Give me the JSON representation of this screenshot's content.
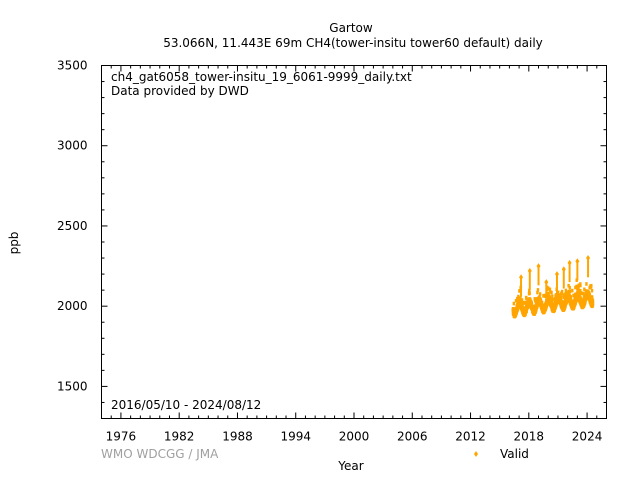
{
  "chart_data": {
    "type": "scatter",
    "title": "Gartow",
    "subtitle": "53.066N, 11.443E 69m    CH4(tower-insitu tower60 default) daily",
    "xlabel": "Year",
    "ylabel": "ppb",
    "xlim": [
      1974,
      2026
    ],
    "ylim": [
      1300,
      3500
    ],
    "x_ticks": [
      1976,
      1982,
      1988,
      1994,
      2000,
      2006,
      2012,
      2018,
      2024
    ],
    "y_ticks": [
      1500,
      2000,
      2500,
      3000,
      3500
    ],
    "annotations": {
      "filename": "ch4_gat6058_tower-insitu_19_6061-9999_daily.txt",
      "provider": "Data provided by DWD",
      "period": "2016/05/10 - 2024/08/12",
      "credit": "WMO WDCGG / JMA"
    },
    "legend": {
      "position": "bottom-right"
    },
    "grid": false,
    "series": [
      {
        "name": "Valid",
        "color": "#ffa500",
        "x_range": [
          2016.36,
          2024.61
        ],
        "baseline_start": 1975,
        "baseline_end": 2040,
        "seasonal_amplitude": 30,
        "spread": 40,
        "summary_points": [
          {
            "x": 2016.5,
            "y": 1975
          },
          {
            "x": 2017.0,
            "y": 2040
          },
          {
            "x": 2017.5,
            "y": 1980
          },
          {
            "x": 2018.0,
            "y": 2050
          },
          {
            "x": 2018.5,
            "y": 1990
          },
          {
            "x": 2019.0,
            "y": 2060
          },
          {
            "x": 2019.5,
            "y": 1995
          },
          {
            "x": 2020.0,
            "y": 2065
          },
          {
            "x": 2020.5,
            "y": 2005
          },
          {
            "x": 2021.0,
            "y": 2075
          },
          {
            "x": 2021.5,
            "y": 2015
          },
          {
            "x": 2022.0,
            "y": 2085
          },
          {
            "x": 2022.5,
            "y": 2025
          },
          {
            "x": 2023.0,
            "y": 2095
          },
          {
            "x": 2023.5,
            "y": 2030
          },
          {
            "x": 2024.0,
            "y": 2100
          },
          {
            "x": 2024.5,
            "y": 2040
          }
        ],
        "spikes": [
          {
            "x": 2017.2,
            "y": 2180
          },
          {
            "x": 2018.1,
            "y": 2220
          },
          {
            "x": 2019.0,
            "y": 2250
          },
          {
            "x": 2019.8,
            "y": 2150
          },
          {
            "x": 2020.9,
            "y": 2200
          },
          {
            "x": 2021.6,
            "y": 2230
          },
          {
            "x": 2022.2,
            "y": 2270
          },
          {
            "x": 2023.0,
            "y": 2280
          },
          {
            "x": 2024.1,
            "y": 2300
          }
        ]
      }
    ]
  }
}
